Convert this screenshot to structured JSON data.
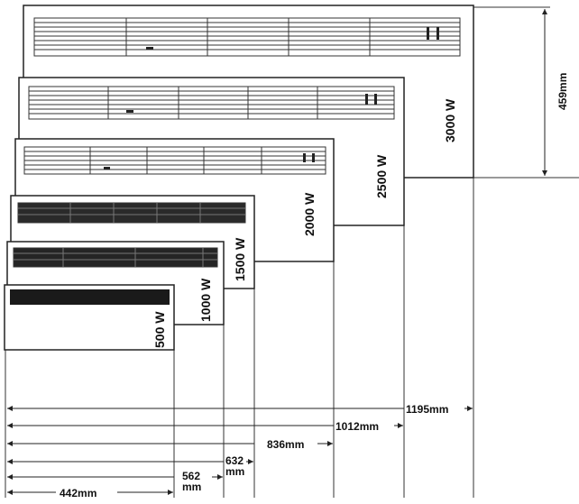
{
  "diagram": {
    "heaters": [
      {
        "power_label": "3000 W",
        "width_label": "1195mm"
      },
      {
        "power_label": "2500 W",
        "width_label": "1012mm"
      },
      {
        "power_label": "2000 W",
        "width_label": "836mm"
      },
      {
        "power_label": "1500 W",
        "width_label": "632 mm"
      },
      {
        "power_label": "1000 W",
        "width_label": "562 mm"
      },
      {
        "power_label": "500 W",
        "width_label": "442mm"
      }
    ],
    "height_label": "459mm",
    "colors": {
      "line": "#222222",
      "grille": "#333333",
      "dark_grille": "#1a1a1a"
    }
  }
}
